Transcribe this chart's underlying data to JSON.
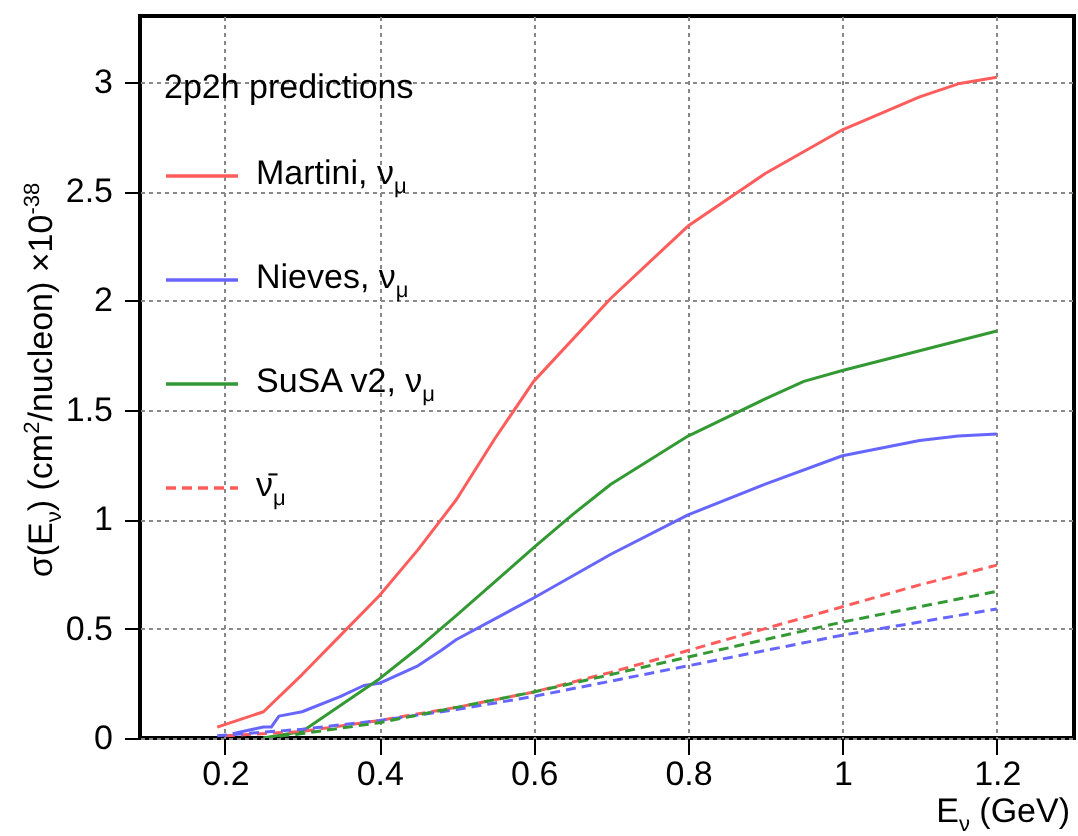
{
  "chart_data": {
    "type": "line",
    "xlabel": "E$_{ν}$ (GeV)",
    "ylabel": "σ(E$_{ν}$) (cm$^{2}$/nucleon) ×10$^{-38}$",
    "legend_title": "2p2h predictions",
    "legend": "top left",
    "grid": true,
    "xlim": [
      0.09,
      1.3
    ],
    "ylim": [
      0,
      3.3
    ],
    "xticks": [
      0.2,
      0.4,
      0.6,
      0.8,
      1,
      1.2
    ],
    "yticks": [
      0,
      0.5,
      1,
      1.5,
      2,
      2.5,
      3
    ],
    "series": [
      {
        "name": "Martini, ν$_{μ}$",
        "color": "#ff5c5c",
        "line_style": "solid",
        "x": [
          0.19,
          0.25,
          0.3,
          0.35,
          0.4,
          0.45,
          0.5,
          0.55,
          0.6,
          0.7,
          0.8,
          0.9,
          1.0,
          1.1,
          1.15,
          1.2
        ],
        "values": [
          0.05,
          0.12,
          0.29,
          0.47,
          0.65,
          0.86,
          1.09,
          1.37,
          1.63,
          2.01,
          2.34,
          2.58,
          2.78,
          2.93,
          2.99,
          3.02
        ]
      },
      {
        "name": "Nieves, ν$_{μ}$",
        "color": "#6666ff",
        "line_style": "solid",
        "x": [
          0.21,
          0.25,
          0.26,
          0.27,
          0.3,
          0.35,
          0.38,
          0.4,
          0.45,
          0.48,
          0.5,
          0.6,
          0.7,
          0.8,
          0.9,
          1.0,
          1.1,
          1.15,
          1.2
        ],
        "values": [
          0.02,
          0.05,
          0.05,
          0.1,
          0.12,
          0.19,
          0.24,
          0.25,
          0.33,
          0.4,
          0.45,
          0.64,
          0.84,
          1.02,
          1.16,
          1.29,
          1.36,
          1.38,
          1.39
        ]
      },
      {
        "name": "SuSA v2, ν$_{μ}$",
        "color": "#339933",
        "line_style": "solid",
        "x": [
          0.25,
          0.3,
          0.35,
          0.4,
          0.45,
          0.5,
          0.6,
          0.65,
          0.7,
          0.8,
          0.9,
          0.95,
          1.0,
          1.1,
          1.2
        ],
        "values": [
          0.0,
          0.03,
          0.15,
          0.27,
          0.41,
          0.56,
          0.87,
          1.02,
          1.16,
          1.38,
          1.55,
          1.63,
          1.68,
          1.77,
          1.86
        ]
      },
      {
        "name": "ν̄$_{μ}$",
        "color": "#ff5c5c",
        "line_style": "dashed",
        "x": [
          0.2,
          0.3,
          0.4,
          0.5,
          0.6,
          0.7,
          0.8,
          0.9,
          1.0,
          1.1,
          1.2
        ],
        "values": [
          0.01,
          0.03,
          0.08,
          0.14,
          0.21,
          0.3,
          0.4,
          0.5,
          0.6,
          0.7,
          0.79
        ]
      },
      {
        "color": "#6666ff",
        "line_style": "dashed",
        "x": [
          0.19,
          0.3,
          0.4,
          0.5,
          0.6,
          0.7,
          0.8,
          0.9,
          1.0,
          1.1,
          1.2
        ],
        "values": [
          0.01,
          0.04,
          0.08,
          0.13,
          0.19,
          0.26,
          0.33,
          0.4,
          0.47,
          0.53,
          0.59
        ]
      },
      {
        "color": "#339933",
        "line_style": "dashed",
        "x": [
          0.25,
          0.3,
          0.4,
          0.5,
          0.6,
          0.7,
          0.8,
          0.9,
          1.0,
          1.1,
          1.2
        ],
        "values": [
          0.0,
          0.02,
          0.07,
          0.14,
          0.21,
          0.29,
          0.37,
          0.45,
          0.53,
          0.6,
          0.67
        ]
      }
    ]
  }
}
